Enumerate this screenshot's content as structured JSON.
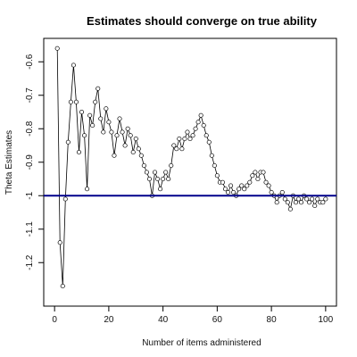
{
  "chart_data": {
    "type": "line",
    "title": "Estimates should converge on true ability",
    "xlabel": "Number of items administered",
    "ylabel": "Theta Estimates",
    "xlim": [
      -4,
      104
    ],
    "ylim": [
      -1.33,
      -0.53
    ],
    "xticks": [
      0,
      20,
      40,
      60,
      80,
      100
    ],
    "yticks": [
      -1.2,
      -1.1,
      -1.0,
      -0.9,
      -0.8,
      -0.7,
      -0.6
    ],
    "ytick_labels": [
      "-1.2",
      "-1.1",
      "-1",
      "-0.9",
      "-0.8",
      "-0.7",
      "-0.6"
    ],
    "grid": false,
    "reference_line": {
      "y": -1.0,
      "color": "#00008b"
    },
    "series": [
      {
        "color": "#000000",
        "marker": "open-circle",
        "x": [
          1,
          2,
          3,
          4,
          5,
          6,
          7,
          8,
          9,
          10,
          11,
          12,
          13,
          14,
          15,
          16,
          17,
          18,
          19,
          20,
          21,
          22,
          23,
          24,
          25,
          26,
          27,
          28,
          29,
          30,
          31,
          32,
          33,
          34,
          35,
          36,
          37,
          38,
          39,
          40,
          41,
          42,
          43,
          44,
          45,
          46,
          47,
          48,
          49,
          50,
          51,
          52,
          53,
          54,
          55,
          56,
          57,
          58,
          59,
          60,
          61,
          62,
          63,
          64,
          65,
          66,
          67,
          68,
          69,
          70,
          71,
          72,
          73,
          74,
          75,
          76,
          77,
          78,
          79,
          80,
          81,
          82,
          83,
          84,
          85,
          86,
          87,
          88,
          89,
          90,
          91,
          92,
          93,
          94,
          95,
          96,
          97,
          98,
          99,
          100
        ],
        "values": [
          -0.56,
          -1.14,
          -1.27,
          -1.01,
          -0.84,
          -0.72,
          -0.61,
          -0.72,
          -0.87,
          -0.75,
          -0.82,
          -0.98,
          -0.76,
          -0.79,
          -0.72,
          -0.68,
          -0.77,
          -0.81,
          -0.74,
          -0.78,
          -0.81,
          -0.88,
          -0.82,
          -0.77,
          -0.81,
          -0.85,
          -0.8,
          -0.82,
          -0.87,
          -0.83,
          -0.86,
          -0.88,
          -0.91,
          -0.93,
          -0.95,
          -1.0,
          -0.93,
          -0.95,
          -0.98,
          -0.95,
          -0.93,
          -0.95,
          -0.91,
          -0.85,
          -0.86,
          -0.83,
          -0.86,
          -0.83,
          -0.81,
          -0.83,
          -0.82,
          -0.8,
          -0.78,
          -0.76,
          -0.79,
          -0.82,
          -0.84,
          -0.88,
          -0.91,
          -0.94,
          -0.96,
          -0.96,
          -0.98,
          -0.99,
          -0.97,
          -0.99,
          -1.0,
          -0.98,
          -0.97,
          -0.98,
          -0.97,
          -0.96,
          -0.94,
          -0.93,
          -0.95,
          -0.93,
          -0.93,
          -0.96,
          -0.97,
          -0.99,
          -1.0,
          -1.02,
          -1.0,
          -0.99,
          -1.01,
          -1.02,
          -1.04,
          -1.0,
          -1.02,
          -1.01,
          -1.02,
          -1.0,
          -1.01,
          -1.02,
          -1.01,
          -1.03,
          -1.01,
          -1.02,
          -1.02,
          -1.01
        ]
      }
    ]
  }
}
